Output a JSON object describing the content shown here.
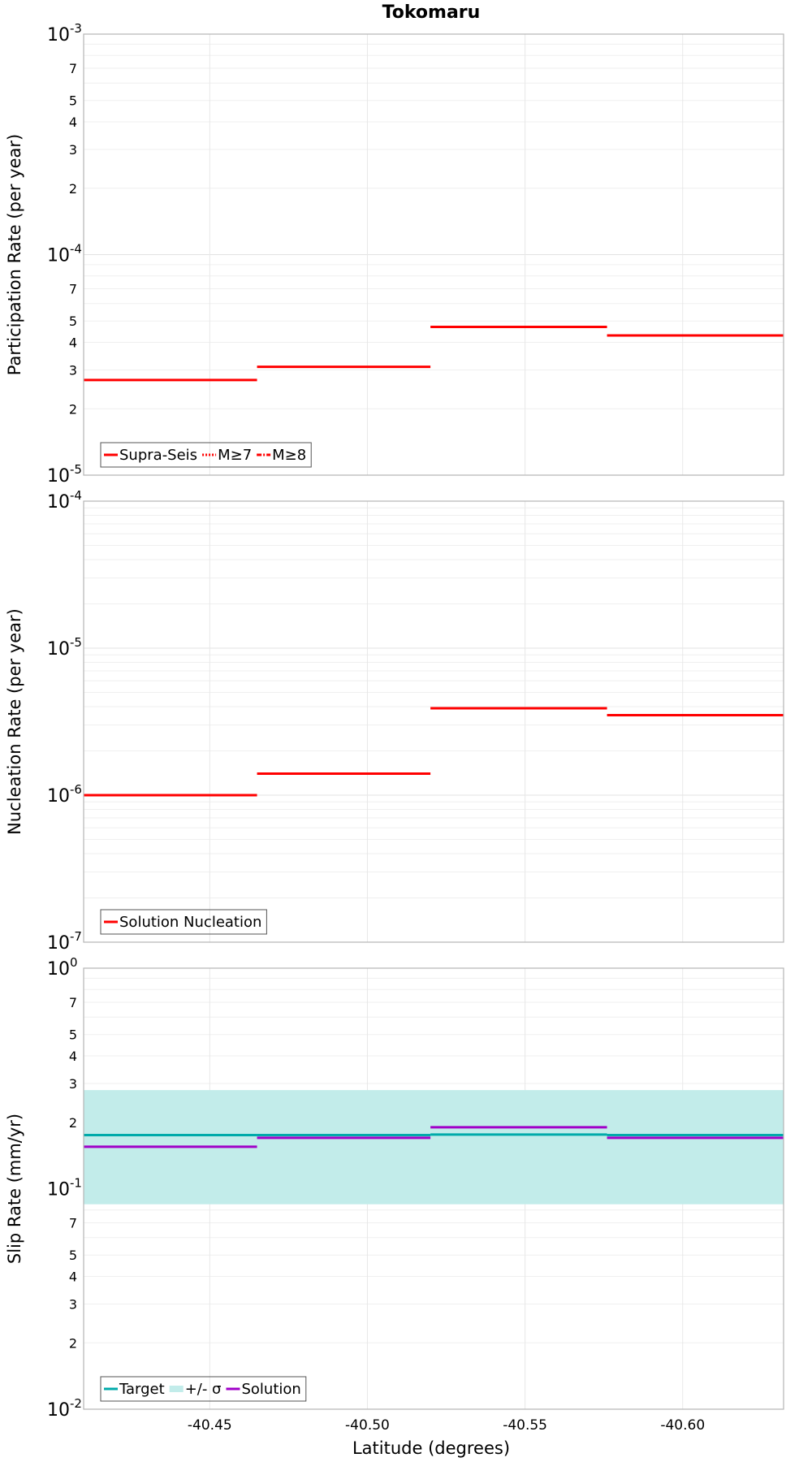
{
  "figure": {
    "title": "Tokomaru",
    "xlabel": "Latitude (degrees)"
  },
  "x_ticks": [
    "-40.45",
    "-40.50",
    "-40.55",
    "-40.60"
  ],
  "chart_data": [
    {
      "type": "line",
      "step": true,
      "ylabel": "Participation Rate (per year)",
      "yscale": "log",
      "ylim": [
        1e-05,
        0.001
      ],
      "xlim": [
        -40.41,
        -40.632
      ],
      "grid": true,
      "legend": {
        "placement": "bottom-left",
        "entries": [
          {
            "label": "Supra-Seis",
            "style": "solid",
            "color": "#ff0000"
          },
          {
            "label": "M≥7",
            "style": "dotted",
            "color": "#ff0000"
          },
          {
            "label": "M≥8",
            "style": "dashdot",
            "color": "#ff0000"
          }
        ]
      },
      "series": [
        {
          "name": "Supra-Seis",
          "color": "#ff0000",
          "segments": [
            {
              "x0": -40.41,
              "x1": -40.465,
              "y": 2.7e-05
            },
            {
              "x0": -40.465,
              "x1": -40.52,
              "y": 3.1e-05
            },
            {
              "x0": -40.52,
              "x1": -40.576,
              "y": 4.7e-05
            },
            {
              "x0": -40.576,
              "x1": -40.632,
              "y": 4.3e-05
            }
          ]
        }
      ]
    },
    {
      "type": "line",
      "step": true,
      "ylabel": "Nucleation Rate (per year)",
      "yscale": "log",
      "ylim": [
        1e-07,
        0.0001
      ],
      "xlim": [
        -40.41,
        -40.632
      ],
      "grid": true,
      "legend": {
        "placement": "bottom-left",
        "entries": [
          {
            "label": "Solution Nucleation",
            "style": "solid",
            "color": "#ff0000"
          }
        ]
      },
      "series": [
        {
          "name": "Solution Nucleation",
          "color": "#ff0000",
          "segments": [
            {
              "x0": -40.41,
              "x1": -40.465,
              "y": 1e-06
            },
            {
              "x0": -40.465,
              "x1": -40.52,
              "y": 1.4e-06
            },
            {
              "x0": -40.52,
              "x1": -40.576,
              "y": 3.9e-06
            },
            {
              "x0": -40.576,
              "x1": -40.632,
              "y": 3.5e-06
            }
          ]
        }
      ]
    },
    {
      "type": "line",
      "step": true,
      "ylabel": "Slip Rate (mm/yr)",
      "yscale": "log",
      "ylim": [
        0.01,
        1
      ],
      "xlim": [
        -40.41,
        -40.632
      ],
      "grid": true,
      "legend": {
        "placement": "bottom-left",
        "entries": [
          {
            "label": "Target",
            "style": "solid",
            "color": "#00aaaa"
          },
          {
            "label": "+/- σ",
            "style": "band",
            "color": "#c2ecea"
          },
          {
            "label": "Solution",
            "style": "solid",
            "color": "#a000c8"
          }
        ]
      },
      "band": {
        "name": "+/- σ",
        "color": "#c2ecea",
        "y_low": 0.085,
        "y_high": 0.28
      },
      "series": [
        {
          "name": "Target",
          "color": "#00aaaa",
          "segments": [
            {
              "x0": -40.41,
              "x1": -40.465,
              "y": 0.175
            },
            {
              "x0": -40.465,
              "x1": -40.52,
              "y": 0.175
            },
            {
              "x0": -40.52,
              "x1": -40.576,
              "y": 0.176
            },
            {
              "x0": -40.576,
              "x1": -40.632,
              "y": 0.175
            }
          ]
        },
        {
          "name": "Solution",
          "color": "#a000c8",
          "segments": [
            {
              "x0": -40.41,
              "x1": -40.465,
              "y": 0.155
            },
            {
              "x0": -40.465,
              "x1": -40.52,
              "y": 0.17
            },
            {
              "x0": -40.52,
              "x1": -40.576,
              "y": 0.19
            },
            {
              "x0": -40.576,
              "x1": -40.632,
              "y": 0.17
            }
          ]
        }
      ]
    }
  ]
}
